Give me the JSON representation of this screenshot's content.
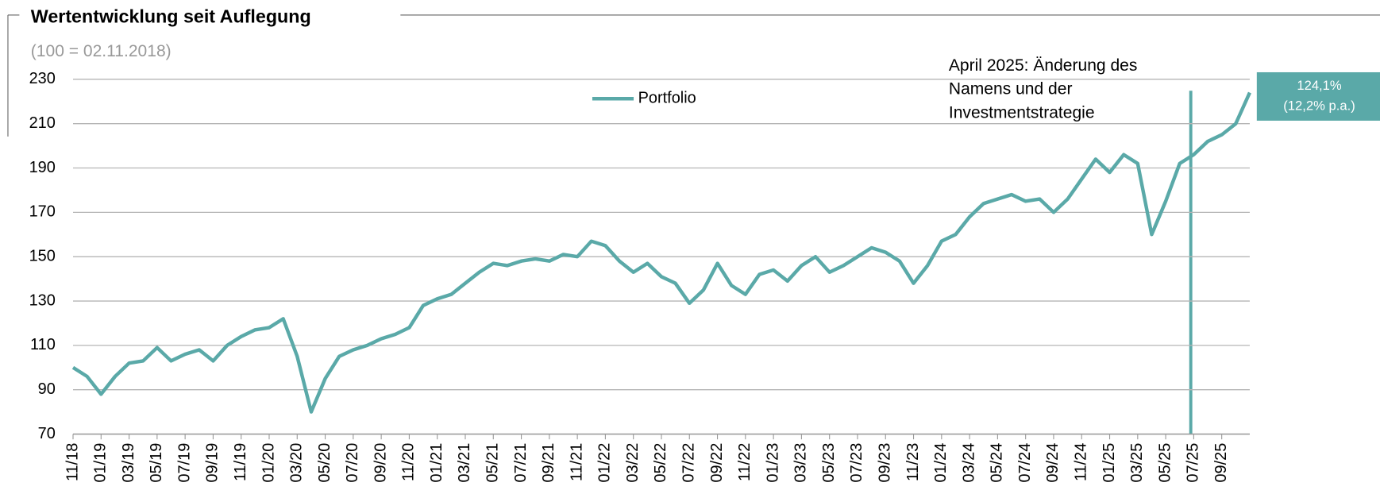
{
  "chart_data": {
    "type": "line",
    "title": "Wertentwicklung seit Auflegung",
    "subtitle": "(100 = 02.11.2018)",
    "annotation": [
      "April 2025: Änderung des",
      "Namens und der",
      "Investmentstrategie"
    ],
    "end_label": [
      "124,1%",
      "(12,2% p.a.)"
    ],
    "categories": [
      "11/18",
      null,
      "01/19",
      null,
      "03/19",
      null,
      "05/19",
      null,
      "07/19",
      null,
      "09/19",
      null,
      "11/19",
      null,
      "01/20",
      null,
      "03/20",
      null,
      "05/20",
      null,
      "07/20",
      null,
      "09/20",
      null,
      "11/20",
      null,
      "01/21",
      null,
      "03/21",
      null,
      "05/21",
      null,
      "07/21",
      null,
      "09/21",
      null,
      "11/21",
      null,
      "01/22",
      null,
      "03/22",
      null,
      "05/22",
      null,
      "07/22",
      null,
      "09/22",
      null,
      "11/22",
      null,
      "01/23",
      null,
      "03/23",
      null,
      "05/23",
      null,
      "07/23",
      null,
      "09/23",
      null,
      "11/23",
      null,
      "01/24",
      null,
      "03/24",
      null,
      "05/24",
      null,
      "07/24",
      null,
      "09/24",
      null,
      "11/24",
      null,
      "01/25",
      null,
      "03/25",
      null,
      "05/25",
      null,
      "07/25",
      null,
      "09/25",
      null,
      null
    ],
    "series": [
      {
        "name": "Portfolio",
        "color": "#5aa9a8",
        "values": [
          100,
          96,
          88,
          96,
          102,
          103,
          109,
          103,
          106,
          108,
          103,
          110,
          114,
          117,
          118,
          122,
          105,
          80,
          95,
          105,
          108,
          110,
          113,
          115,
          118,
          128,
          131,
          133,
          138,
          143,
          147,
          146,
          148,
          149,
          148,
          151,
          150,
          157,
          155,
          148,
          143,
          147,
          141,
          138,
          129,
          135,
          147,
          137,
          133,
          142,
          144,
          139,
          146,
          150,
          143,
          146,
          150,
          154,
          152,
          148,
          138,
          146,
          157,
          160,
          168,
          174,
          176,
          178,
          175,
          176,
          170,
          176,
          185,
          194,
          188,
          196,
          192,
          160,
          175,
          192,
          196,
          202,
          205,
          210,
          224
        ]
      }
    ],
    "ylim": [
      70,
      230
    ],
    "yticks": [
      70,
      90,
      110,
      130,
      150,
      170,
      190,
      210,
      230
    ],
    "grid": true
  }
}
